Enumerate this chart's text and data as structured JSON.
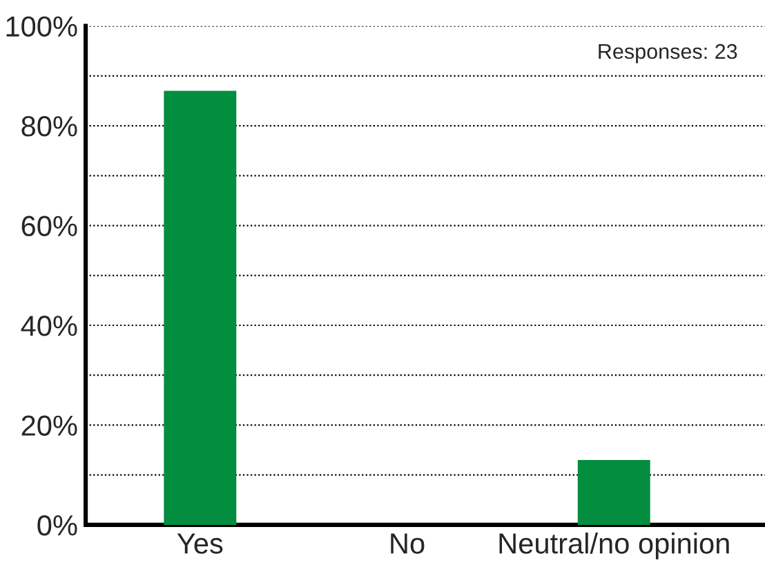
{
  "chart_data": {
    "type": "bar",
    "categories": [
      "Yes",
      "No",
      "Neutral/no opinion"
    ],
    "values": [
      87,
      0,
      13
    ],
    "color": "#038d3f",
    "ylim": [
      0,
      100
    ],
    "yticks": [
      {
        "value": 0,
        "label": "0%"
      },
      {
        "value": 10,
        "label": null
      },
      {
        "value": 20,
        "label": "20%"
      },
      {
        "value": 30,
        "label": null
      },
      {
        "value": 40,
        "label": "40%"
      },
      {
        "value": 50,
        "label": null
      },
      {
        "value": 60,
        "label": "60%"
      },
      {
        "value": 70,
        "label": null
      },
      {
        "value": 80,
        "label": "80%"
      },
      {
        "value": 90,
        "label": null
      },
      {
        "value": 100,
        "label": "100%"
      }
    ],
    "grid": "y",
    "legend": false,
    "annotations": [
      "Responses: 23"
    ]
  }
}
